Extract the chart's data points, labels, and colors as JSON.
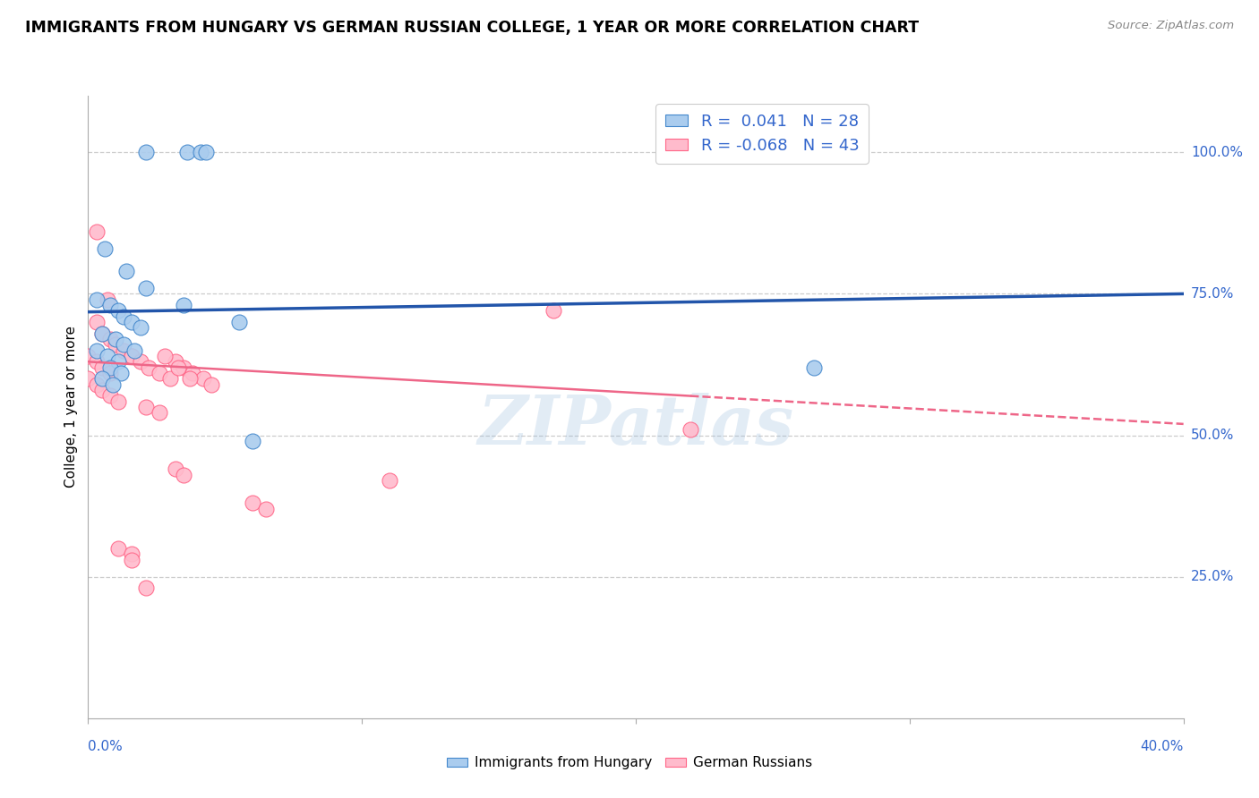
{
  "title": "IMMIGRANTS FROM HUNGARY VS GERMAN RUSSIAN COLLEGE, 1 YEAR OR MORE CORRELATION CHART",
  "source": "Source: ZipAtlas.com",
  "ylabel": "College, 1 year or more",
  "ylabel_right_ticks": [
    "100.0%",
    "75.0%",
    "50.0%",
    "25.0%"
  ],
  "ylabel_right_vals": [
    1.0,
    0.75,
    0.5,
    0.25
  ],
  "xlim": [
    0.0,
    0.4
  ],
  "ylim": [
    0.0,
    1.1
  ],
  "R_blue": 0.041,
  "N_blue": 28,
  "R_pink": -0.068,
  "N_pink": 43,
  "blue_fill": "#AACCEE",
  "blue_edge": "#4488CC",
  "pink_fill": "#FFBBCC",
  "pink_edge": "#FF6688",
  "blue_line_color": "#2255AA",
  "pink_line_color": "#EE6688",
  "legend_label_blue": "Immigrants from Hungary",
  "legend_label_pink": "German Russians",
  "blue_line_y0": 0.718,
  "blue_line_y1": 0.75,
  "pink_line_y0": 0.63,
  "pink_line_y1": 0.52,
  "watermark": "ZIPatlas",
  "background_color": "#FFFFFF",
  "grid_color": "#CCCCCC",
  "blue_x": [
    0.021,
    0.036,
    0.041,
    0.043,
    0.006,
    0.014,
    0.021,
    0.003,
    0.008,
    0.011,
    0.013,
    0.016,
    0.019,
    0.005,
    0.01,
    0.013,
    0.017,
    0.003,
    0.007,
    0.011,
    0.008,
    0.012,
    0.265,
    0.06,
    0.005,
    0.009,
    0.035,
    0.055
  ],
  "blue_y": [
    1.0,
    1.0,
    1.0,
    1.0,
    0.83,
    0.79,
    0.76,
    0.74,
    0.73,
    0.72,
    0.71,
    0.7,
    0.69,
    0.68,
    0.67,
    0.66,
    0.65,
    0.65,
    0.64,
    0.63,
    0.62,
    0.61,
    0.62,
    0.49,
    0.6,
    0.59,
    0.73,
    0.7
  ],
  "pink_x": [
    0.003,
    0.005,
    0.008,
    0.01,
    0.013,
    0.016,
    0.0,
    0.003,
    0.005,
    0.008,
    0.0,
    0.003,
    0.005,
    0.008,
    0.011,
    0.016,
    0.019,
    0.022,
    0.026,
    0.03,
    0.032,
    0.035,
    0.038,
    0.042,
    0.045,
    0.028,
    0.033,
    0.037,
    0.011,
    0.016,
    0.021,
    0.026,
    0.032,
    0.035,
    0.06,
    0.065,
    0.11,
    0.17,
    0.003,
    0.007,
    0.016,
    0.021,
    0.22
  ],
  "pink_y": [
    0.7,
    0.68,
    0.67,
    0.66,
    0.65,
    0.64,
    0.64,
    0.63,
    0.62,
    0.61,
    0.6,
    0.59,
    0.58,
    0.57,
    0.56,
    0.64,
    0.63,
    0.62,
    0.61,
    0.6,
    0.63,
    0.62,
    0.61,
    0.6,
    0.59,
    0.64,
    0.62,
    0.6,
    0.3,
    0.29,
    0.55,
    0.54,
    0.44,
    0.43,
    0.38,
    0.37,
    0.42,
    0.72,
    0.86,
    0.74,
    0.28,
    0.23,
    0.51
  ]
}
